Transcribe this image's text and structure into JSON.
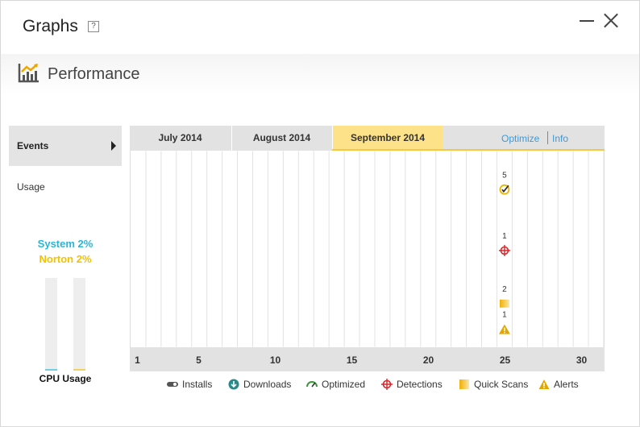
{
  "window": {
    "title": "Graphs",
    "help_label": "?"
  },
  "header": {
    "section_title": "Performance"
  },
  "nav": {
    "events_label": "Events",
    "usage_label": "Usage"
  },
  "cpu": {
    "system_label": "System 2%",
    "norton_label": "Norton 2%",
    "system_percent": 2,
    "norton_percent": 2,
    "title": "CPU Usage",
    "system_color": "#29b6d6",
    "norton_color": "#f2c200"
  },
  "tabs": [
    {
      "label": "July 2014",
      "active": false
    },
    {
      "label": "August 2014",
      "active": false
    },
    {
      "label": "September 2014",
      "active": true
    }
  ],
  "links": {
    "optimize": "Optimize",
    "info": "Info"
  },
  "chart_data": {
    "type": "scatter",
    "month": "September 2014",
    "x_ticks": [
      "1",
      "5",
      "10",
      "15",
      "20",
      "25",
      "30"
    ],
    "x_range": [
      1,
      31
    ],
    "grid": true,
    "events": [
      {
        "category": "Optimized",
        "day": 25,
        "count": "5",
        "icon": "optimized-check-icon"
      },
      {
        "category": "Detections",
        "day": 25,
        "count": "1",
        "icon": "detections-crosshair-icon"
      },
      {
        "category": "Quick Scans",
        "day": 25,
        "count": "2",
        "icon": "quick-scans-icon"
      },
      {
        "category": "Alerts",
        "day": 25,
        "count": "1",
        "icon": "alerts-warning-icon"
      }
    ]
  },
  "legend": [
    {
      "label": "Installs",
      "icon": "installs-icon"
    },
    {
      "label": "Downloads",
      "icon": "downloads-icon"
    },
    {
      "label": "Optimized",
      "icon": "optimized-icon"
    },
    {
      "label": "Detections",
      "icon": "detections-icon"
    },
    {
      "label": "Quick Scans",
      "icon": "quick-scans-icon"
    },
    {
      "label": "Alerts",
      "icon": "alerts-icon"
    }
  ],
  "colors": {
    "accent_blue": "#3d9ad6",
    "active_tab": "#fde28a",
    "detection_red": "#d9262b",
    "optimized_gold": "#e8b400",
    "alert_gold": "#e0a800"
  }
}
